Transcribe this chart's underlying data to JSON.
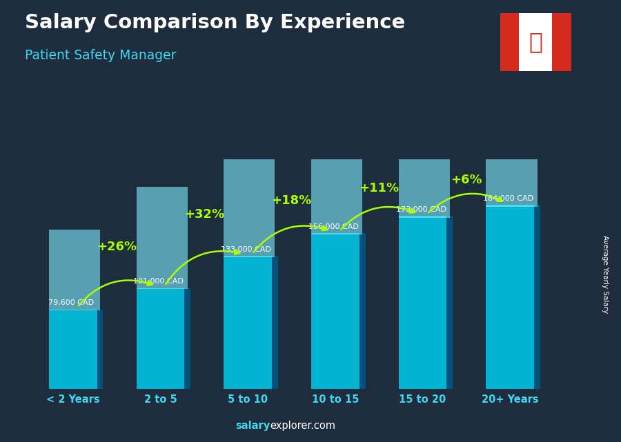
{
  "title": "Salary Comparison By Experience",
  "subtitle": "Patient Safety Manager",
  "categories": [
    "< 2 Years",
    "2 to 5",
    "5 to 10",
    "10 to 15",
    "15 to 20",
    "20+ Years"
  ],
  "values": [
    79600,
    101000,
    133000,
    156000,
    173000,
    184000
  ],
  "salary_labels": [
    "79,600 CAD",
    "101,000 CAD",
    "133,000 CAD",
    "156,000 CAD",
    "173,000 CAD",
    "184,000 CAD"
  ],
  "pct_changes": [
    null,
    "+26%",
    "+32%",
    "+18%",
    "+11%",
    "+6%"
  ],
  "bar_color": "#00c8e8",
  "bar_edge_color": "#009ab8",
  "bar_side_color": "#005580",
  "background_color": "#1e2d3d",
  "title_color": "#ffffff",
  "subtitle_color": "#40d8f0",
  "salary_label_color": "#ffffff",
  "pct_color": "#aaff00",
  "axis_label_color": "#40d8f0",
  "ylabel": "Average Yearly Salary",
  "footer_bold": "salary",
  "footer_regular": "explorer.com",
  "footer_bold_color": "#40d8f0",
  "footer_regular_color": "#ffffff",
  "ylim": [
    0,
    230000
  ],
  "bar_bottom": 0
}
